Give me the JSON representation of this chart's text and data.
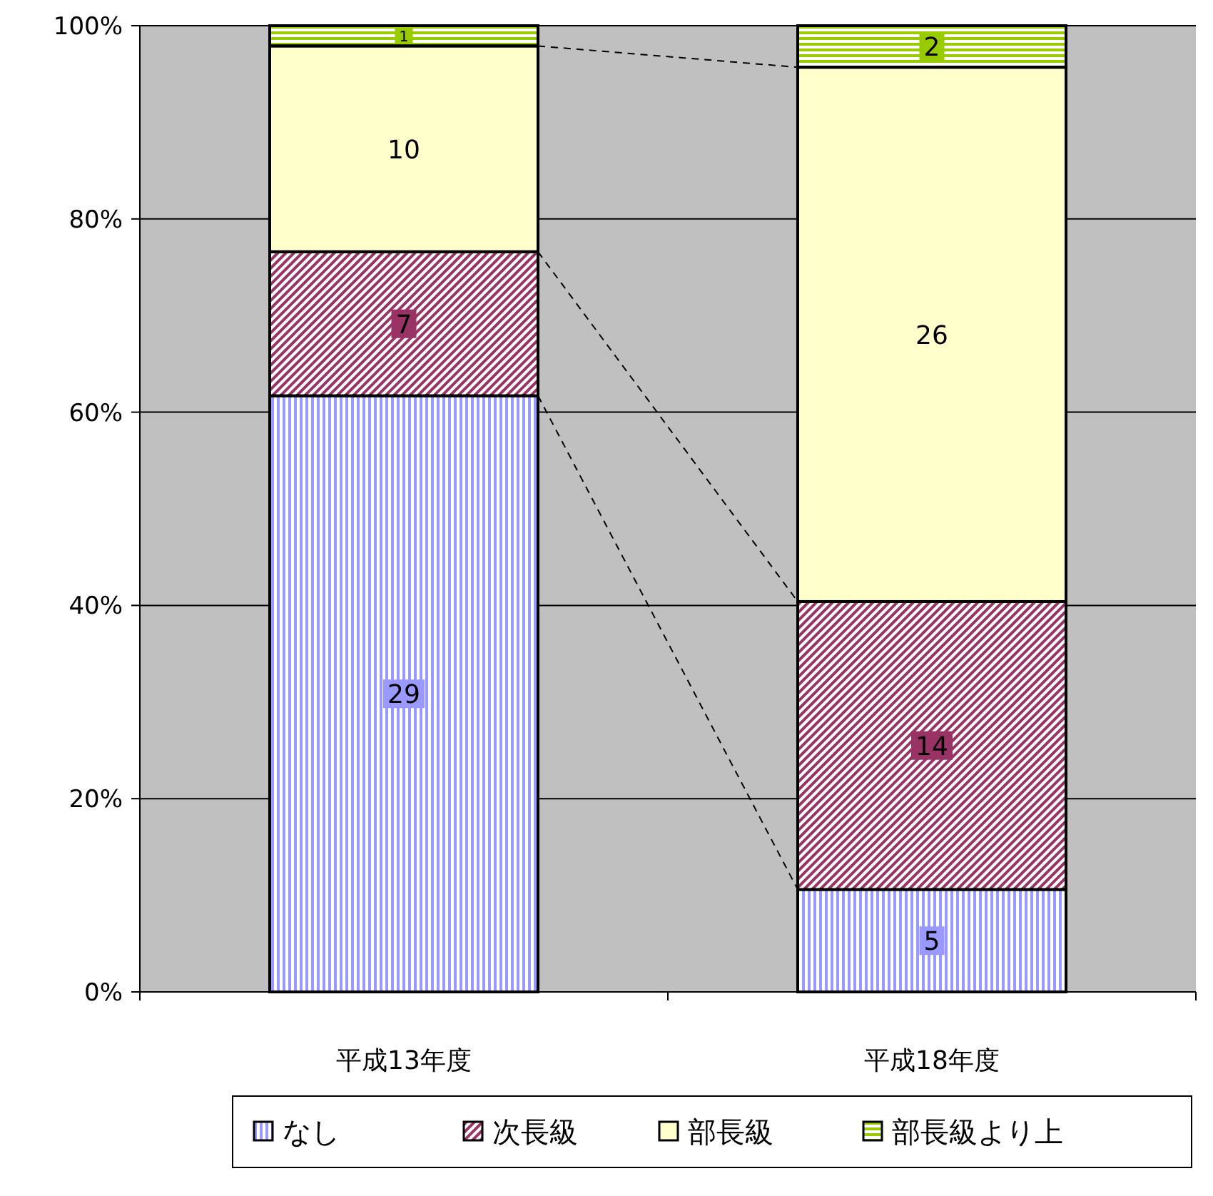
{
  "chart_data": {
    "type": "bar",
    "stacked": true,
    "categories": [
      "平成13年度",
      "平成18年度"
    ],
    "series": [
      {
        "name": "なし",
        "color": "#9999ff",
        "values": [
          61.7,
          10.6
        ]
      },
      {
        "name": "次長級",
        "color": "#993366",
        "values": [
          14.9,
          29.8
        ]
      },
      {
        "name": "部長級",
        "color": "#ffffcc",
        "values": [
          21.3,
          55.3
        ]
      },
      {
        "name": "部長級より上",
        "color": "#99cc00",
        "values": [
          2.1,
          4.3
        ]
      }
    ],
    "annotations": [
      "29",
      "5",
      "7",
      "14",
      "10",
      "26",
      "1",
      "2"
    ],
    "ylim": [
      0,
      100
    ],
    "yticks": [
      {
        "value": 0,
        "label": "0%"
      },
      {
        "value": 20,
        "label": "20%"
      },
      {
        "value": 40,
        "label": "40%"
      },
      {
        "value": 60,
        "label": "60%"
      },
      {
        "value": 80,
        "label": "80%"
      },
      {
        "value": 100,
        "label": "100%"
      }
    ],
    "grid": "y",
    "legend": "bottom"
  }
}
